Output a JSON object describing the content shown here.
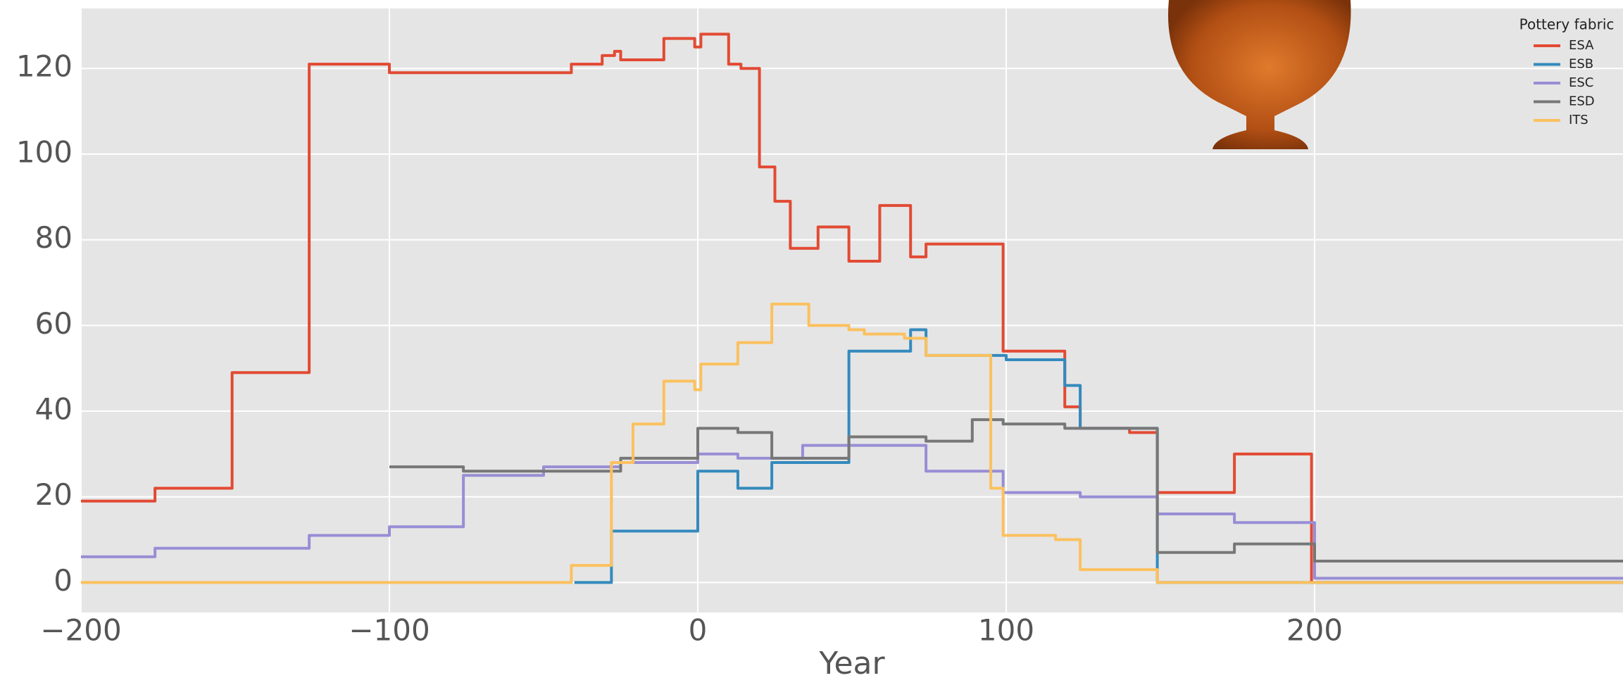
{
  "chart_data": {
    "type": "line",
    "drawstyle": "steps-post",
    "xlabel": "Year",
    "xlim": [
      -200,
      300
    ],
    "ylim": [
      -7,
      134
    ],
    "xticks": [
      {
        "value": -200,
        "label": "−200"
      },
      {
        "value": -100,
        "label": "−100"
      },
      0,
      100,
      200
    ],
    "yticks": [
      0,
      20,
      40,
      60,
      80,
      100,
      120
    ],
    "grid": true,
    "legend_title": "Pottery fabric",
    "legend_loc": "upper right",
    "series": [
      {
        "name": "ESA",
        "color": "#e24a33",
        "x": [
          -200,
          -176,
          -151,
          -126,
          -100,
          -41,
          -31,
          -27,
          -25,
          -11,
          -1,
          1,
          10,
          14,
          20,
          25,
          30,
          39,
          49,
          59,
          69,
          74,
          99,
          119,
          124,
          140,
          149,
          174,
          199,
          300
        ],
        "values": [
          19,
          22,
          49,
          121,
          119,
          121,
          123,
          124,
          122,
          127,
          125,
          128,
          121,
          120,
          97,
          89,
          78,
          83,
          75,
          88,
          76,
          79,
          54,
          41,
          36,
          35,
          21,
          30,
          0,
          0
        ]
      },
      {
        "name": "ESB",
        "color": "#348abd",
        "x": [
          -40,
          -28,
          0,
          13,
          24,
          49,
          69,
          74,
          100,
          119,
          124,
          149,
          300
        ],
        "values": [
          0,
          12,
          26,
          22,
          28,
          54,
          59,
          53,
          52,
          46,
          36,
          0,
          0
        ]
      },
      {
        "name": "ESC",
        "color": "#988ed5",
        "x": [
          -200,
          -176,
          -126,
          -100,
          -76,
          -50,
          -25,
          0,
          13,
          34,
          74,
          99,
          124,
          149,
          174,
          200,
          300
        ],
        "values": [
          6,
          8,
          11,
          13,
          25,
          27,
          28,
          30,
          29,
          32,
          26,
          21,
          20,
          16,
          14,
          1,
          1
        ]
      },
      {
        "name": "ESD",
        "color": "#777777",
        "x": [
          -100,
          -76,
          -25,
          0,
          13,
          24,
          49,
          74,
          89,
          99,
          119,
          149,
          174,
          200,
          300
        ],
        "values": [
          27,
          26,
          29,
          36,
          35,
          29,
          34,
          33,
          38,
          37,
          36,
          7,
          9,
          5,
          5
        ]
      },
      {
        "name": "ITS",
        "color": "#fbc15e",
        "x": [
          -200,
          -41,
          -28,
          -21,
          -11,
          -1,
          1,
          13,
          24,
          36,
          49,
          54,
          67,
          74,
          95,
          99,
          116,
          124,
          149,
          300
        ],
        "values": [
          0,
          4,
          28,
          37,
          47,
          45,
          51,
          56,
          65,
          60,
          59,
          58,
          57,
          53,
          22,
          11,
          10,
          3,
          0,
          0
        ]
      }
    ]
  }
}
